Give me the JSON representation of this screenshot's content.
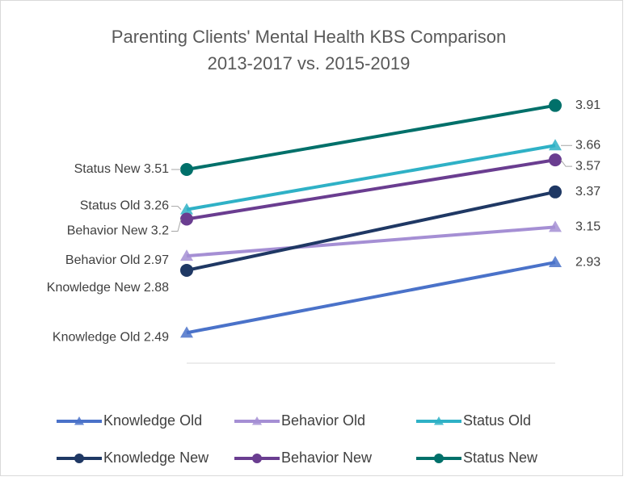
{
  "chart_data": {
    "type": "line",
    "title": "Parenting Clients' Mental Health KBS Comparison",
    "subtitle": "2013-2017 vs. 2015-2019",
    "categories": [
      null,
      null
    ],
    "ylim": [
      2.3,
      4.1
    ],
    "legend": "bottom",
    "series": [
      {
        "name": "Knowledge Old",
        "color": "#4a72c9",
        "marker": "triangle",
        "values": [
          2.49,
          2.93
        ]
      },
      {
        "name": "Behavior Old",
        "color": "#a58fd4",
        "marker": "triangle",
        "values": [
          2.97,
          3.15
        ]
      },
      {
        "name": "Status Old",
        "color": "#2fb1c6",
        "marker": "triangle",
        "values": [
          3.26,
          3.66
        ]
      },
      {
        "name": "Knowledge New",
        "color": "#1f3864",
        "marker": "circle",
        "values": [
          2.88,
          3.37
        ]
      },
      {
        "name": "Behavior New",
        "color": "#6a3d90",
        "marker": "circle",
        "values": [
          3.2,
          3.57
        ]
      },
      {
        "name": "Status New",
        "color": "#00706a",
        "marker": "circle",
        "values": [
          3.51,
          3.91
        ]
      }
    ]
  }
}
